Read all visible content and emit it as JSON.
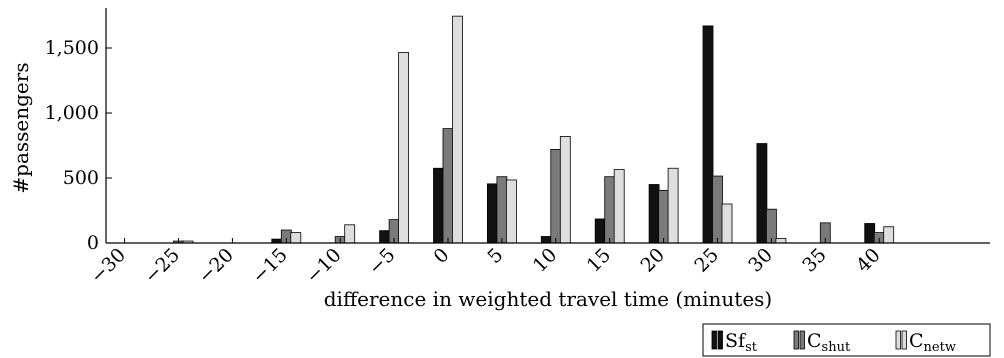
{
  "chart_data": {
    "type": "bar",
    "xlabel": "difference in weighted travel time (minutes)",
    "ylabel": "#passengers",
    "categories": [
      "−30",
      "−25",
      "−20",
      "−15",
      "−10",
      "−5",
      "0",
      "5",
      "10",
      "15",
      "20",
      "25",
      "30",
      "35",
      "40"
    ],
    "x": [
      -30,
      -25,
      -20,
      -15,
      -10,
      -5,
      0,
      5,
      10,
      15,
      20,
      25,
      30,
      35,
      40
    ],
    "ylim": [
      0,
      1800
    ],
    "yticks": [
      0,
      500,
      1000,
      1500
    ],
    "ytick_labels": [
      "0",
      "500",
      "1,000",
      "1,500"
    ],
    "grid": false,
    "legend_position": "bottom-right",
    "series": [
      {
        "name": "Sf",
        "name_sub": "st",
        "color": "#111111",
        "values": [
          0,
          0,
          0,
          30,
          0,
          95,
          575,
          455,
          50,
          185,
          450,
          1670,
          765,
          0,
          150
        ]
      },
      {
        "name": "C",
        "name_sub": "shut",
        "color": "#7a7a7a",
        "values": [
          0,
          15,
          0,
          100,
          50,
          180,
          880,
          510,
          720,
          510,
          405,
          515,
          260,
          155,
          80
        ]
      },
      {
        "name": "C",
        "name_sub": "netw",
        "color": "#dedede",
        "values": [
          0,
          15,
          0,
          80,
          140,
          1465,
          1745,
          485,
          820,
          565,
          575,
          300,
          35,
          0,
          125
        ]
      }
    ]
  }
}
